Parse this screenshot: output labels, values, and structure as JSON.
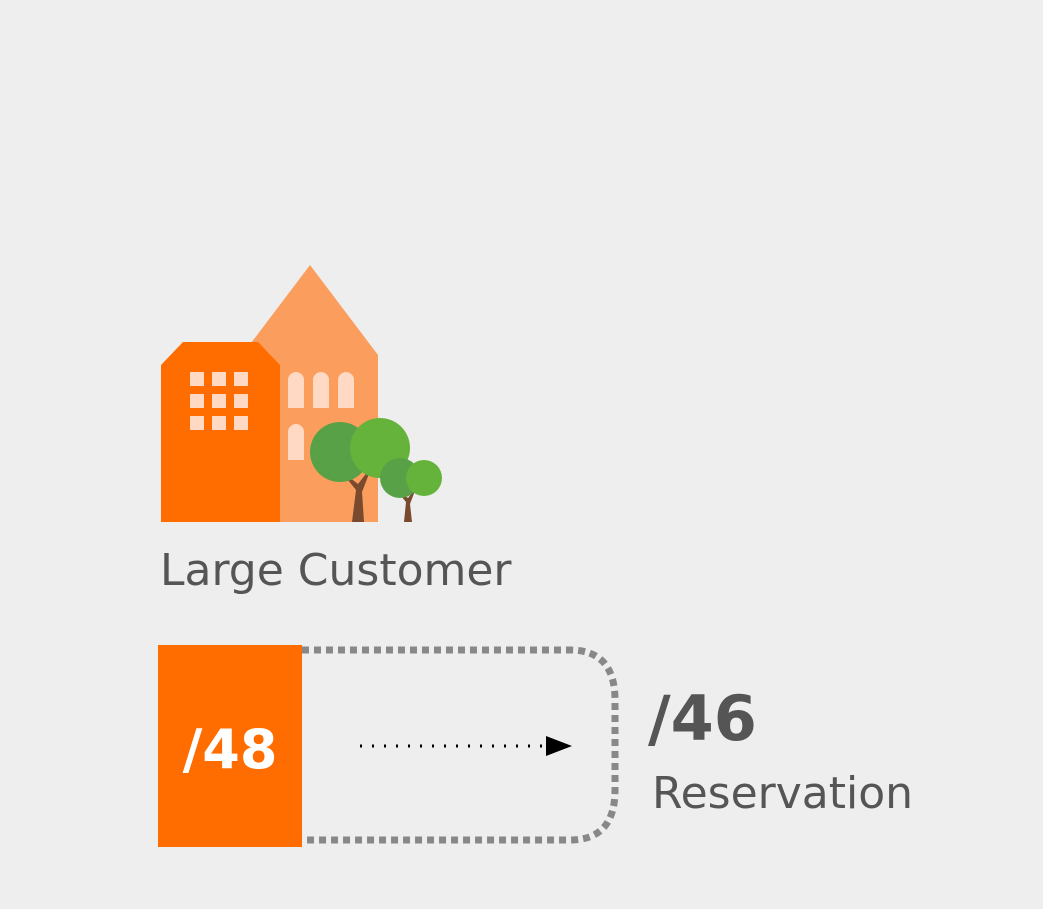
{
  "customer": {
    "label": "Large Customer"
  },
  "source": {
    "prefix": "/48"
  },
  "target": {
    "prefix": "/46",
    "label": "Reservation"
  }
}
